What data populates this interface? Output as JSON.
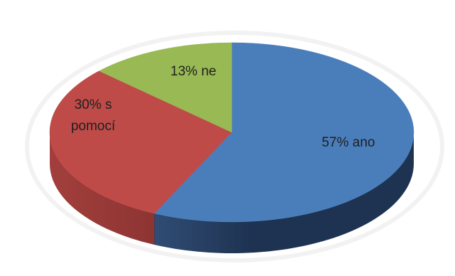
{
  "chart_data": {
    "type": "pie",
    "style": "3d",
    "title": "",
    "legend": "none",
    "slices": [
      {
        "label": "ano",
        "value": 57,
        "text_lines": [
          "57% ano"
        ],
        "color": "#4a7ebb",
        "side_color_light": "#44689a",
        "side_color_dark": "#1e3352"
      },
      {
        "label": "s pomocí",
        "value": 30,
        "text_lines": [
          "30% s",
          "pomocí"
        ],
        "color": "#be4b48",
        "side_color_light": "#a23f3c",
        "side_color_dark": "#7a2b29"
      },
      {
        "label": "ne",
        "value": 13,
        "text_lines": [
          "13% ne"
        ],
        "color": "#98b954",
        "side_color_light": "#7e9a44",
        "side_color_dark": "#5f7433"
      }
    ]
  }
}
